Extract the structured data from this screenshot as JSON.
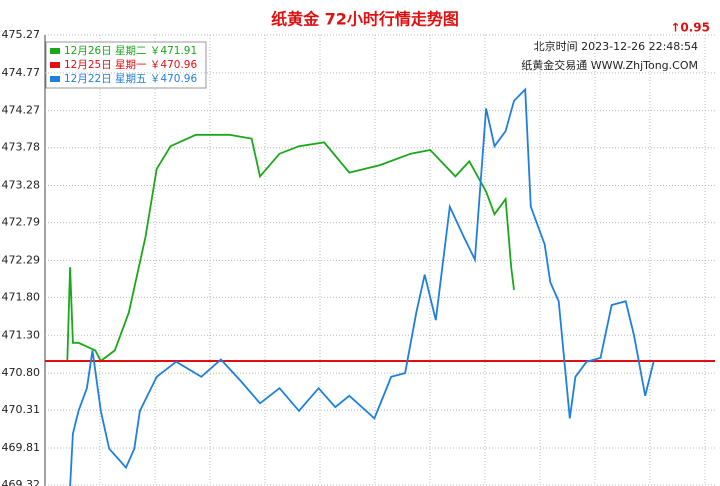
{
  "chart_data": {
    "type": "line",
    "title": "纸黄金 72小时行情走势图",
    "change": "↑0.95",
    "time_text": "北京时间 2023-12-26 22:48:54",
    "source_text": "纸黄金交易通 WWW.ZhjTong.COM",
    "xlim": [
      0,
      120
    ],
    "ylim": [
      469.32,
      475.27
    ],
    "yticks": [
      475.27,
      474.77,
      474.27,
      473.78,
      473.28,
      472.79,
      472.29,
      {
        "value": 471.8,
        "label": "471.80"
      },
      {
        "value": 471.3,
        "label": "471.30"
      },
      {
        "value": 470.8,
        "label": "470.80"
      },
      470.31,
      469.81,
      469.32
    ],
    "grid": true,
    "series": [
      {
        "name": "12月26日 星期二 ￥471.91",
        "color": "#1aa81a",
        "x": [
          0,
          4,
          4.5,
          5,
          6,
          9,
          10,
          12.5,
          15,
          18,
          20,
          22.5,
          27,
          33,
          37,
          38.5,
          42,
          45.5,
          50,
          54.5,
          60,
          65.5,
          69,
          73.5,
          76,
          79,
          80.5,
          82.5,
          83.5,
          84
        ],
        "values": [
          470.96,
          470.96,
          472.2,
          471.2,
          471.2,
          471.1,
          470.96,
          471.1,
          471.6,
          472.6,
          473.5,
          473.8,
          473.95,
          473.95,
          473.9,
          473.4,
          473.7,
          473.8,
          473.85,
          473.45,
          473.55,
          473.7,
          473.75,
          473.4,
          473.6,
          473.2,
          472.9,
          473.1,
          472.2,
          471.9
        ]
      },
      {
        "name": "12月25日 星期一 ￥470.96",
        "color": "#e01010",
        "x": [
          0,
          120
        ],
        "values": [
          470.96,
          470.96
        ]
      },
      {
        "name": "12月22日 星期五 ￥470.96",
        "color": "#1e7fe0",
        "x": [
          4.5,
          5,
          6,
          7.5,
          8.5,
          10,
          11.5,
          14.5,
          16,
          17,
          20,
          23.5,
          28,
          31.5,
          35,
          38.5,
          42,
          45.5,
          49,
          52,
          54.5,
          59,
          62,
          64.5,
          66.5,
          68,
          70,
          72.5,
          75,
          77,
          79,
          80.5,
          82.5,
          84,
          86,
          87,
          89.5,
          90.5,
          92,
          94,
          95,
          97,
          99.5,
          101.5,
          104,
          105.5,
          107.5,
          109
        ],
        "values": [
          469.3,
          470.0,
          470.3,
          470.6,
          471.1,
          470.3,
          469.8,
          469.55,
          469.8,
          470.3,
          470.75,
          470.95,
          470.75,
          470.98,
          470.7,
          470.4,
          470.6,
          470.3,
          470.6,
          470.35,
          470.5,
          470.2,
          470.75,
          470.8,
          471.6,
          472.1,
          471.5,
          473.0,
          472.6,
          472.3,
          474.3,
          473.8,
          474.0,
          474.4,
          474.55,
          473.0,
          472.5,
          472.0,
          471.75,
          470.2,
          470.75,
          470.95,
          471.0,
          471.7,
          471.75,
          471.3,
          470.5,
          470.95
        ]
      }
    ]
  }
}
